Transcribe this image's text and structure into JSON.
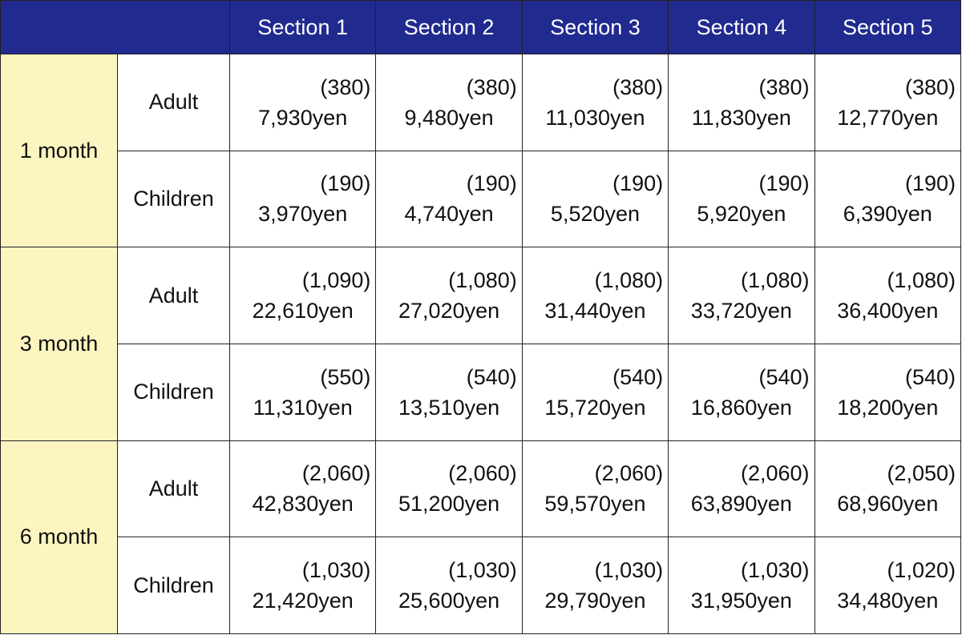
{
  "header": {
    "columns": [
      "Section 1",
      "Section 2",
      "Section 3",
      "Section 4",
      "Section 5"
    ]
  },
  "groups": [
    {
      "label": "1 month",
      "rows": [
        {
          "label": "Adult",
          "cells": [
            {
              "note": "(380)",
              "price": "7,930yen"
            },
            {
              "note": "(380)",
              "price": "9,480yen"
            },
            {
              "note": "(380)",
              "price": "11,030yen"
            },
            {
              "note": "(380)",
              "price": "11,830yen"
            },
            {
              "note": "(380)",
              "price": "12,770yen"
            }
          ]
        },
        {
          "label": "Children",
          "cells": [
            {
              "note": "(190)",
              "price": "3,970yen"
            },
            {
              "note": "(190)",
              "price": "4,740yen"
            },
            {
              "note": "(190)",
              "price": "5,520yen"
            },
            {
              "note": "(190)",
              "price": "5,920yen"
            },
            {
              "note": "(190)",
              "price": "6,390yen"
            }
          ]
        }
      ]
    },
    {
      "label": "3 month",
      "rows": [
        {
          "label": "Adult",
          "cells": [
            {
              "note": "(1,090)",
              "price": "22,610yen"
            },
            {
              "note": "(1,080)",
              "price": "27,020yen"
            },
            {
              "note": "(1,080)",
              "price": "31,440yen"
            },
            {
              "note": "(1,080)",
              "price": "33,720yen"
            },
            {
              "note": "(1,080)",
              "price": "36,400yen"
            }
          ]
        },
        {
          "label": "Children",
          "cells": [
            {
              "note": "(550)",
              "price": "11,310yen"
            },
            {
              "note": "(540)",
              "price": "13,510yen"
            },
            {
              "note": "(540)",
              "price": "15,720yen"
            },
            {
              "note": "(540)",
              "price": "16,860yen"
            },
            {
              "note": "(540)",
              "price": "18,200yen"
            }
          ]
        }
      ]
    },
    {
      "label": "6 month",
      "rows": [
        {
          "label": "Adult",
          "cells": [
            {
              "note": "(2,060)",
              "price": "42,830yen"
            },
            {
              "note": "(2,060)",
              "price": "51,200yen"
            },
            {
              "note": "(2,060)",
              "price": "59,570yen"
            },
            {
              "note": "(2,060)",
              "price": "63,890yen"
            },
            {
              "note": "(2,050)",
              "price": "68,960yen"
            }
          ]
        },
        {
          "label": "Children",
          "cells": [
            {
              "note": "(1,030)",
              "price": "21,420yen"
            },
            {
              "note": "(1,030)",
              "price": "25,600yen"
            },
            {
              "note": "(1,030)",
              "price": "29,790yen"
            },
            {
              "note": "(1,030)",
              "price": "31,950yen"
            },
            {
              "note": "(1,020)",
              "price": "34,480yen"
            }
          ]
        }
      ]
    }
  ]
}
